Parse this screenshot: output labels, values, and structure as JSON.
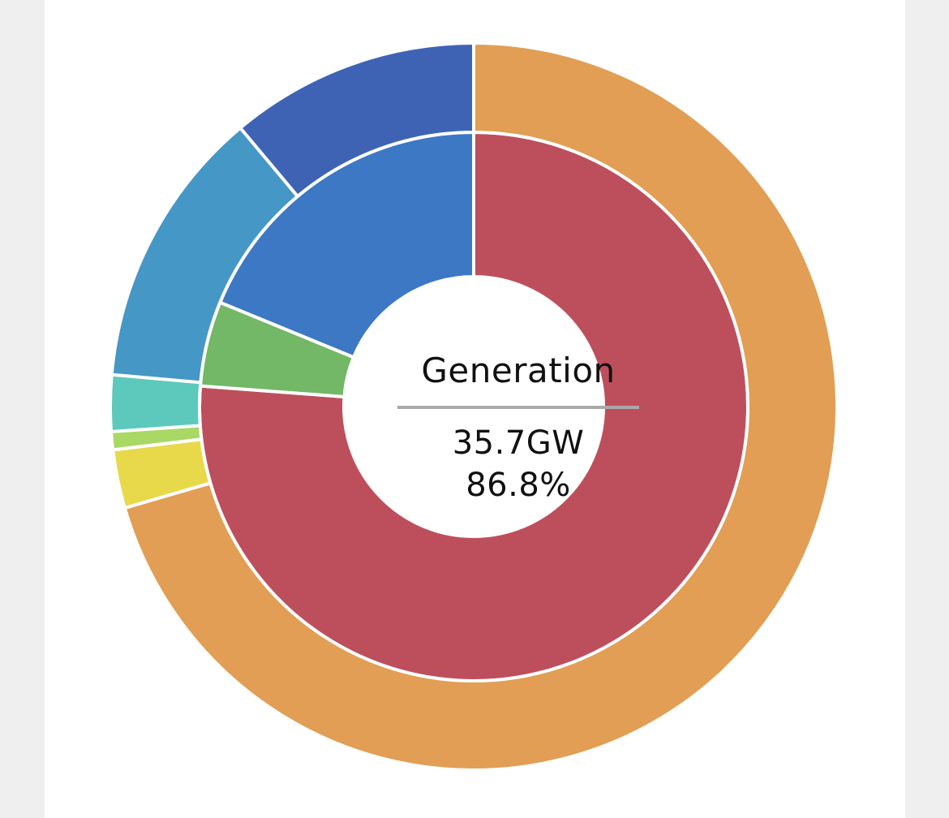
{
  "center": {
    "title": "Generation",
    "value": "35.7GW",
    "percent": "86.8%"
  },
  "chart_data": {
    "type": "pie",
    "title": "",
    "rings": [
      {
        "name": "",
        "ring": "inner",
        "slices": [
          {
            "value": 76.2,
            "color": "#bd4f5c"
          },
          {
            "value": 5.0,
            "color": "#72b866"
          },
          {
            "value": 18.8,
            "color": "#3d78c5"
          }
        ]
      },
      {
        "name": "",
        "ring": "outer",
        "slices": [
          {
            "value": 70.5,
            "color": "#e19e54"
          },
          {
            "value": 2.6,
            "color": "#e8d94a"
          },
          {
            "value": 0.8,
            "color": "#a9d864"
          },
          {
            "value": 2.5,
            "color": "#5cc9bc"
          },
          {
            "value": 12.5,
            "color": "#4597c6"
          },
          {
            "value": 11.1,
            "color": "#3f63b4"
          }
        ]
      }
    ]
  }
}
